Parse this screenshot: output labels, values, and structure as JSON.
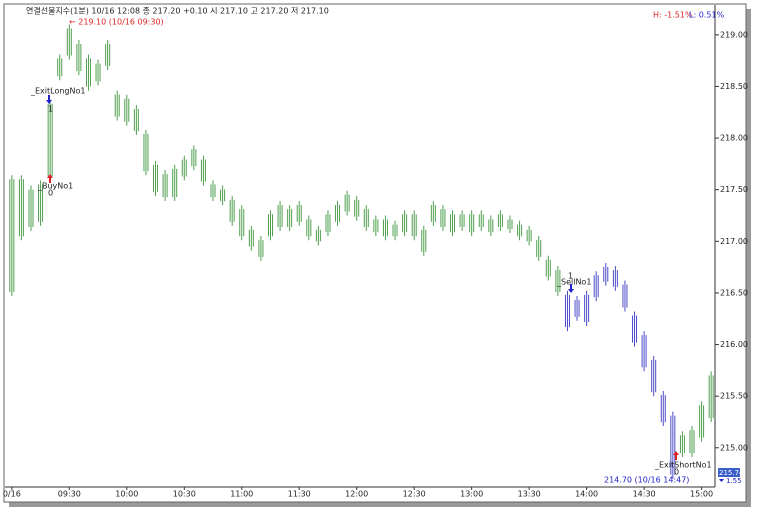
{
  "chart_data": {
    "type": "ohlc",
    "title": "연결선물지수(1분) 10/16 12:08  종 217.20 +0.10  시 217.10 고 217.20 저 217.10",
    "high_pct": "H: -1.51%",
    "low_pct": "L: 0.51%",
    "xlim": [
      "08:58",
      "15:07"
    ],
    "ylim": [
      214.62,
      219.26
    ],
    "xticks": [
      {
        "value": "09:00",
        "label": "0/16"
      },
      "09:30",
      "10:00",
      "10:30",
      "11:00",
      "11:30",
      "12:00",
      "12:30",
      "13:00",
      "13:30",
      "14:00",
      "14:30",
      "15:00"
    ],
    "yticks": [
      {
        "value": 215,
        "label": "215.00"
      },
      {
        "value": 215.5,
        "label": "215.50"
      },
      {
        "value": 216,
        "label": "216.00"
      },
      {
        "value": 216.5,
        "label": "216.50"
      },
      {
        "value": 217,
        "label": "217.00"
      },
      {
        "value": 217.5,
        "label": "217.50"
      },
      {
        "value": 218,
        "label": "218.00"
      },
      {
        "value": 218.5,
        "label": "218.50"
      },
      {
        "value": 219,
        "label": "219.00"
      }
    ],
    "series": [
      {
        "color": "#4f9f4f",
        "x": [
          "09:00",
          "09:05",
          "09:10",
          "09:15",
          "09:20",
          "09:25",
          "09:30",
          "09:35",
          "09:40",
          "09:45",
          "09:50",
          "09:55",
          "10:00",
          "10:05",
          "10:10",
          "10:15",
          "10:20",
          "10:25",
          "10:30",
          "10:35",
          "10:40",
          "10:45",
          "10:50",
          "10:55",
          "11:00",
          "11:05",
          "11:10",
          "11:15",
          "11:20",
          "11:25",
          "11:30",
          "11:35",
          "11:40",
          "11:45",
          "11:50",
          "11:55",
          "12:00",
          "12:05",
          "12:10",
          "12:15",
          "12:20",
          "12:25",
          "12:30",
          "12:35",
          "12:40",
          "12:45",
          "12:50",
          "12:55",
          "13:00",
          "13:05",
          "13:10",
          "13:15",
          "13:20",
          "13:25",
          "13:30",
          "13:35",
          "13:40",
          "13:45"
        ],
        "high": [
          217.64,
          217.64,
          217.54,
          217.59,
          218.37,
          218.81,
          219.1,
          218.95,
          218.81,
          218.76,
          218.95,
          218.46,
          218.42,
          218.32,
          218.08,
          217.78,
          217.69,
          217.74,
          217.83,
          217.93,
          217.83,
          217.59,
          217.54,
          217.44,
          217.35,
          217.15,
          217.05,
          217.3,
          217.39,
          217.35,
          217.39,
          217.25,
          217.15,
          217.3,
          217.39,
          217.49,
          217.44,
          217.35,
          217.25,
          217.25,
          217.2,
          217.3,
          217.3,
          217.15,
          217.39,
          217.35,
          217.3,
          217.3,
          217.3,
          217.3,
          217.25,
          217.3,
          217.25,
          217.2,
          217.15,
          217.05,
          216.86,
          216.76
        ],
        "low": [
          216.47,
          217.01,
          217.1,
          217.15,
          217.59,
          218.56,
          218.76,
          218.61,
          218.46,
          218.51,
          218.66,
          218.17,
          218.12,
          218.03,
          217.64,
          217.44,
          217.39,
          217.39,
          217.59,
          217.69,
          217.54,
          217.39,
          217.35,
          217.15,
          217.01,
          216.91,
          216.81,
          217.01,
          217.1,
          217.1,
          217.15,
          217.01,
          216.96,
          217.05,
          217.15,
          217.25,
          217.2,
          217.1,
          217.05,
          217.01,
          217.01,
          217.05,
          217.01,
          216.86,
          217.15,
          217.1,
          217.05,
          217.1,
          217.05,
          217.1,
          217.05,
          217.1,
          217.08,
          217.01,
          216.96,
          216.81,
          216.62,
          216.47
        ]
      },
      {
        "color": "#4b4bc8",
        "x": [
          "13:50",
          "13:55",
          "14:00",
          "14:05",
          "14:10",
          "14:15",
          "14:20",
          "14:25",
          "14:30",
          "14:35",
          "14:40",
          "14:45"
        ],
        "high": [
          216.52,
          216.47,
          216.52,
          216.71,
          216.79,
          216.76,
          216.62,
          216.32,
          216.13,
          215.89,
          215.55,
          215.35
        ],
        "low": [
          216.13,
          216.23,
          216.18,
          216.42,
          216.57,
          216.52,
          216.32,
          215.98,
          215.74,
          215.5,
          215.21,
          214.7
        ]
      },
      {
        "color": "#4f9f4f",
        "x": [
          "14:50",
          "14:55",
          "15:00",
          "15:05"
        ],
        "high": [
          215.16,
          215.21,
          215.45,
          215.74
        ],
        "low": [
          214.91,
          214.91,
          215.06,
          215.25
        ]
      }
    ],
    "annotations": [
      "← 219.10 (10/16 09:30)",
      "_ExitLongNo1",
      "1",
      "_BuyNo1",
      "0",
      "_SellNo1",
      "1",
      "_ExitShortNo1",
      "0",
      "214.70 (10/16 14:47)"
    ],
    "last_price": "215.74",
    "change": "1.55"
  }
}
